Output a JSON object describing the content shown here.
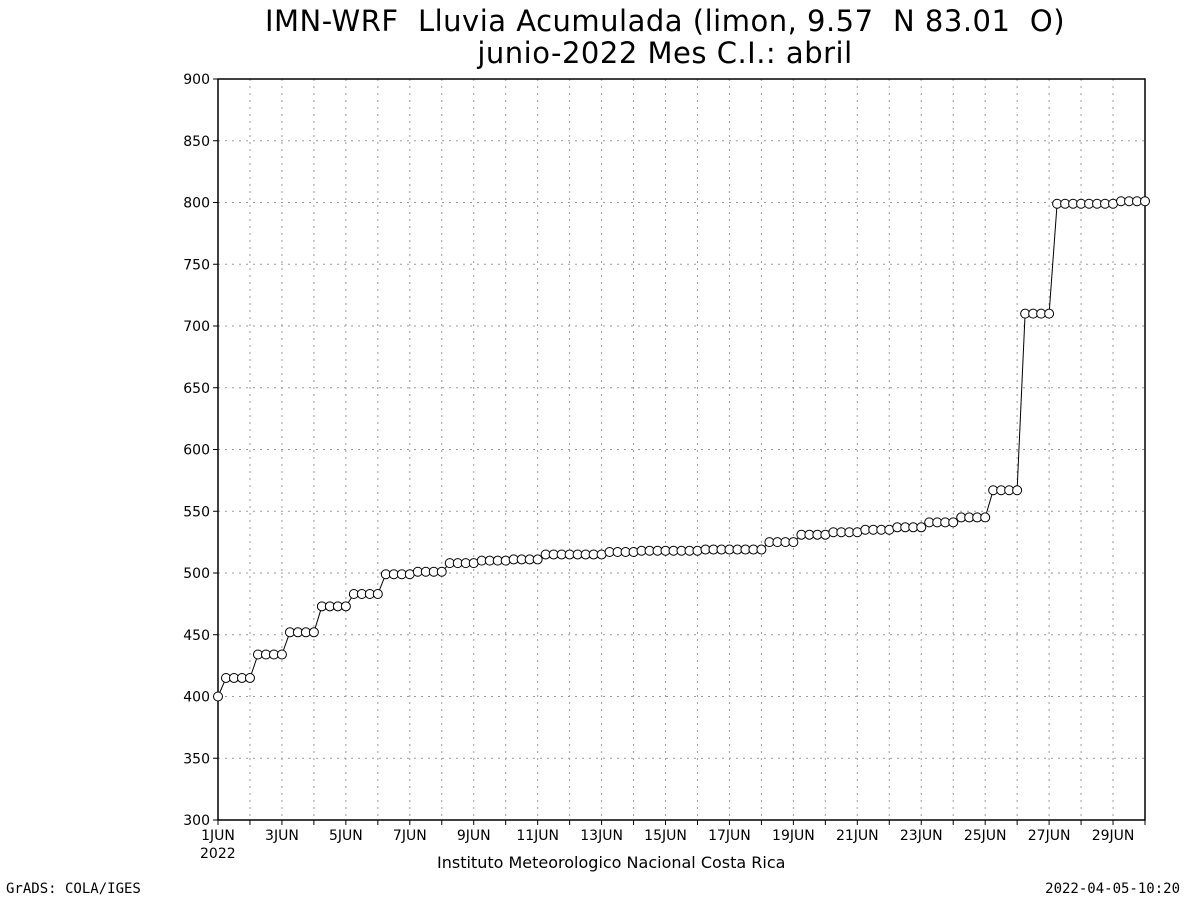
{
  "title_line1": "IMN-WRF  Lluvia Acumulada (limon, 9.57  N 83.01  O)",
  "title_line2": "junio-2022 Mes C.I.: abril",
  "footer_left": "GrADS: COLA/IGES",
  "footer_right": "2022-04-05-10:20",
  "credit": "Instituto Meteorologico Nacional Costa Rica",
  "chart_data": {
    "type": "line",
    "ylim": [
      300,
      900
    ],
    "yticks": [
      300,
      350,
      400,
      450,
      500,
      550,
      600,
      650,
      700,
      750,
      800,
      850,
      900
    ],
    "xlim": [
      1,
      30
    ],
    "xticks": [
      {
        "day": 1,
        "label": "1JUN"
      },
      {
        "day": 3,
        "label": "3JUN"
      },
      {
        "day": 5,
        "label": "5JUN"
      },
      {
        "day": 7,
        "label": "7JUN"
      },
      {
        "day": 9,
        "label": "9JUN"
      },
      {
        "day": 11,
        "label": "11JUN"
      },
      {
        "day": 13,
        "label": "13JUN"
      },
      {
        "day": 15,
        "label": "15JUN"
      },
      {
        "day": 17,
        "label": "17JUN"
      },
      {
        "day": 19,
        "label": "19JUN"
      },
      {
        "day": 21,
        "label": "21JUN"
      },
      {
        "day": 23,
        "label": "23JUN"
      },
      {
        "day": 25,
        "label": "25JUN"
      },
      {
        "day": 27,
        "label": "27JUN"
      },
      {
        "day": 29,
        "label": "29JUN"
      }
    ],
    "year_label": "2022",
    "grid": true,
    "marker": "open-circle",
    "series": [
      {
        "x": [
          1.0,
          1.25,
          1.5,
          1.75,
          2.0,
          2.25,
          2.5,
          2.75,
          3.0,
          3.25,
          3.5,
          3.75,
          4.0,
          4.25,
          4.5,
          4.75,
          5.0,
          5.25,
          5.5,
          5.75,
          6.0,
          6.25,
          6.5,
          6.75,
          7.0,
          7.25,
          7.5,
          7.75,
          8.0,
          8.25,
          8.5,
          8.75,
          9.0,
          9.25,
          9.5,
          9.75,
          10.0,
          10.25,
          10.5,
          10.75,
          11.0,
          11.25,
          11.5,
          11.75,
          12.0,
          12.25,
          12.5,
          12.75,
          13.0,
          13.25,
          13.5,
          13.75,
          14.0,
          14.25,
          14.5,
          14.75,
          15.0,
          15.25,
          15.5,
          15.75,
          16.0,
          16.25,
          16.5,
          16.75,
          17.0,
          17.25,
          17.5,
          17.75,
          18.0,
          18.25,
          18.5,
          18.75,
          19.0,
          19.25,
          19.5,
          19.75,
          20.0,
          20.25,
          20.5,
          20.75,
          21.0,
          21.25,
          21.5,
          21.75,
          22.0,
          22.25,
          22.5,
          22.75,
          23.0,
          23.25,
          23.5,
          23.75,
          24.0,
          24.25,
          24.5,
          24.75,
          25.0,
          25.25,
          25.5,
          25.75,
          26.0,
          26.25,
          26.5,
          26.75,
          27.0,
          27.25,
          27.5,
          27.75,
          28.0,
          28.25,
          28.5,
          28.75,
          29.0,
          29.25,
          29.5,
          29.75,
          30.0
        ],
        "y": [
          400,
          415,
          415,
          415,
          415,
          434,
          434,
          434,
          434,
          452,
          452,
          452,
          452,
          473,
          473,
          473,
          473,
          483,
          483,
          483,
          483,
          499,
          499,
          499,
          499,
          501,
          501,
          501,
          501,
          508,
          508,
          508,
          508,
          510,
          510,
          510,
          510,
          511,
          511,
          511,
          511,
          515,
          515,
          515,
          515,
          515,
          515,
          515,
          515,
          517,
          517,
          517,
          517,
          518,
          518,
          518,
          518,
          518,
          518,
          518,
          518,
          519,
          519,
          519,
          519,
          519,
          519,
          519,
          519,
          525,
          525,
          525,
          525,
          531,
          531,
          531,
          531,
          533,
          533,
          533,
          533,
          535,
          535,
          535,
          535,
          537,
          537,
          537,
          537,
          541,
          541,
          541,
          541,
          545,
          545,
          545,
          545,
          567,
          567,
          567,
          567,
          710,
          710,
          710,
          710,
          799,
          799,
          799,
          799,
          799,
          799,
          799,
          799,
          801,
          801,
          801,
          801
        ]
      }
    ]
  }
}
